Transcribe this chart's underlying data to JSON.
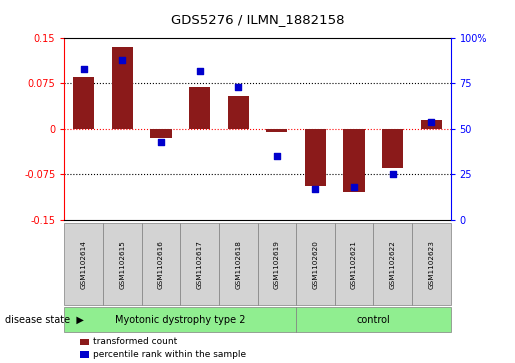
{
  "title": "GDS5276 / ILMN_1882158",
  "samples": [
    "GSM1102614",
    "GSM1102615",
    "GSM1102616",
    "GSM1102617",
    "GSM1102618",
    "GSM1102619",
    "GSM1102620",
    "GSM1102621",
    "GSM1102622",
    "GSM1102623"
  ],
  "transformed_count": [
    0.085,
    0.135,
    -0.015,
    0.07,
    0.055,
    -0.005,
    -0.095,
    -0.105,
    -0.065,
    0.015
  ],
  "percentile_rank": [
    83,
    88,
    43,
    82,
    73,
    35,
    17,
    18,
    25,
    54
  ],
  "group1_label": "Myotonic dystrophy type 2",
  "group1_count": 6,
  "group2_label": "control",
  "group2_count": 4,
  "disease_state_label": "disease state",
  "bar_color": "#8B1A1A",
  "dot_color": "#0000CC",
  "ylim_left": [
    -0.15,
    0.15
  ],
  "ylim_right": [
    0,
    100
  ],
  "yticks_left": [
    -0.15,
    -0.075,
    0,
    0.075,
    0.15
  ],
  "yticks_left_labels": [
    "-0.15",
    "-0.075",
    "0",
    "0.075",
    "0.15"
  ],
  "yticks_right": [
    0,
    25,
    50,
    75,
    100
  ],
  "yticks_right_labels": [
    "0",
    "25",
    "50",
    "75",
    "100%"
  ],
  "hline_black": [
    0.075,
    -0.075
  ],
  "hline_red": [
    0
  ],
  "legend_labels": [
    "transformed count",
    "percentile rank within the sample"
  ],
  "legend_colors": [
    "#8B1A1A",
    "#0000CC"
  ],
  "box_color": "#D3D3D3",
  "group_color": "#90EE90",
  "bar_width": 0.55,
  "dot_size": 20
}
